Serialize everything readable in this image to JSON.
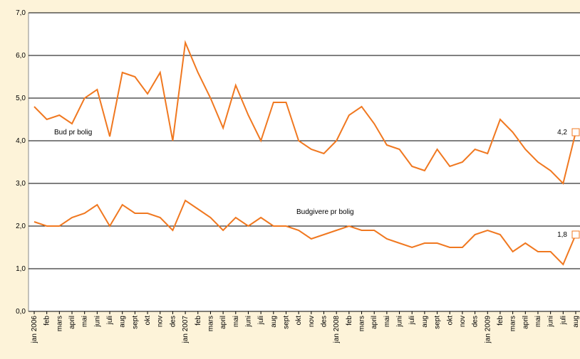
{
  "chart_data": {
    "type": "line",
    "categories": [
      "jan 2006",
      "feb",
      "mars",
      "april",
      "mai",
      "juni",
      "juli",
      "aug",
      "sept",
      "okt",
      "nov",
      "des",
      "jan 2007",
      "feb",
      "mars",
      "april",
      "mai",
      "juni",
      "juli",
      "aug",
      "sept",
      "okt",
      "nov",
      "des",
      "jan 2008",
      "feb",
      "mars",
      "april",
      "mai",
      "juni",
      "juli",
      "aug",
      "sept",
      "okt",
      "nov",
      "des",
      "jan 2009",
      "feb",
      "mars",
      "april",
      "mai",
      "juni",
      "juli",
      "aug"
    ],
    "series": [
      {
        "name": "Bud pr bolig",
        "color": "#f07820",
        "values": [
          4.8,
          4.5,
          4.6,
          4.4,
          5.0,
          5.2,
          4.1,
          5.6,
          5.5,
          5.1,
          5.6,
          4.0,
          6.3,
          5.6,
          5.0,
          4.3,
          5.3,
          4.6,
          4.0,
          4.9,
          4.9,
          4.0,
          3.8,
          3.7,
          4.0,
          4.6,
          4.8,
          4.4,
          3.9,
          3.8,
          3.4,
          3.3,
          3.8,
          3.4,
          3.5,
          3.8,
          3.7,
          4.5,
          4.2,
          3.8,
          3.5,
          3.3,
          3.0,
          4.2
        ],
        "value_labels": [
          null,
          null,
          null,
          null,
          null,
          null,
          null,
          null,
          null,
          null,
          null,
          null,
          null,
          null,
          null,
          null,
          null,
          null,
          null,
          null,
          null,
          null,
          null,
          null,
          null,
          null,
          null,
          null,
          null,
          null,
          null,
          null,
          null,
          null,
          null,
          null,
          null,
          null,
          null,
          null,
          null,
          null,
          null,
          "4,2"
        ]
      },
      {
        "name": "Budgivere pr bolig",
        "color": "#f07820",
        "values": [
          2.1,
          2.0,
          2.0,
          2.2,
          2.3,
          2.5,
          2.0,
          2.5,
          2.3,
          2.3,
          2.2,
          1.9,
          2.6,
          2.4,
          2.2,
          1.9,
          2.2,
          2.0,
          2.2,
          2.0,
          2.0,
          1.9,
          1.7,
          1.8,
          1.9,
          2.0,
          1.9,
          1.9,
          1.7,
          1.6,
          1.5,
          1.6,
          1.6,
          1.5,
          1.5,
          1.8,
          1.9,
          1.8,
          1.4,
          1.6,
          1.4,
          1.4,
          1.1,
          1.8
        ],
        "value_labels": [
          null,
          null,
          null,
          null,
          null,
          null,
          null,
          null,
          null,
          null,
          null,
          null,
          null,
          null,
          null,
          null,
          null,
          null,
          null,
          null,
          null,
          null,
          null,
          null,
          null,
          null,
          null,
          null,
          null,
          null,
          null,
          null,
          null,
          null,
          null,
          null,
          null,
          null,
          null,
          null,
          null,
          null,
          null,
          "1,8"
        ]
      }
    ],
    "ylim": [
      0,
      7
    ],
    "yticks": [
      {
        "value": 0,
        "label": "0,0"
      },
      {
        "value": 1,
        "label": "1,0"
      },
      {
        "value": 2,
        "label": "2,0"
      },
      {
        "value": 3,
        "label": "3,0"
      },
      {
        "value": 4,
        "label": "4,0"
      },
      {
        "value": 5,
        "label": "5,0"
      },
      {
        "value": 6,
        "label": "6,0"
      },
      {
        "value": 7,
        "label": "7,0"
      }
    ],
    "grid": true
  }
}
